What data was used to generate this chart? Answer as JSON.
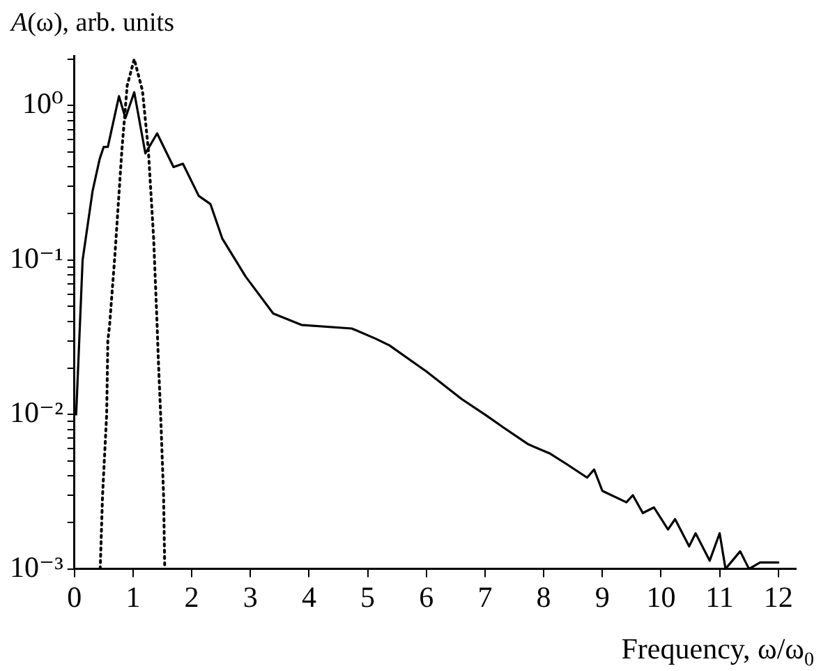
{
  "chart_data": {
    "type": "line",
    "xlabel": "Frequency, ω/ω$_{0}$",
    "ylabel": "A(ω), arb. units",
    "log": "y",
    "grid": false,
    "legend": false,
    "marker": "none",
    "xlim": [
      0,
      12.3
    ],
    "xticks": [
      0,
      1,
      2,
      3,
      4,
      5,
      6,
      7,
      8,
      9,
      10,
      11,
      12
    ],
    "ylim": [
      0.001,
      2.1
    ],
    "yticks": [
      {
        "value": 0.001,
        "label": "10⁻³"
      },
      {
        "value": 0.002,
        "label": null
      },
      {
        "value": 0.003,
        "label": null
      },
      {
        "value": 0.004,
        "label": null
      },
      {
        "value": 0.005,
        "label": null
      },
      {
        "value": 0.006,
        "label": null
      },
      {
        "value": 0.007,
        "label": null
      },
      {
        "value": 0.008,
        "label": null
      },
      {
        "value": 0.009,
        "label": null
      },
      {
        "value": 0.01,
        "label": "10⁻²"
      },
      {
        "value": 0.02,
        "label": null
      },
      {
        "value": 0.03,
        "label": null
      },
      {
        "value": 0.04,
        "label": null
      },
      {
        "value": 0.05,
        "label": null
      },
      {
        "value": 0.06,
        "label": null
      },
      {
        "value": 0.07,
        "label": null
      },
      {
        "value": 0.08,
        "label": null
      },
      {
        "value": 0.09,
        "label": null
      },
      {
        "value": 0.1,
        "label": "10⁻¹"
      },
      {
        "value": 0.2,
        "label": null
      },
      {
        "value": 0.3,
        "label": null
      },
      {
        "value": 0.4,
        "label": null
      },
      {
        "value": 0.5,
        "label": null
      },
      {
        "value": 0.6,
        "label": null
      },
      {
        "value": 0.7,
        "label": null
      },
      {
        "value": 0.8,
        "label": null
      },
      {
        "value": 0.9,
        "label": null
      },
      {
        "value": 1,
        "label": "10⁰"
      },
      {
        "value": 2,
        "label": null
      }
    ],
    "series": [
      {
        "color": "#000000",
        "line_style": "solid",
        "x": [
          0.03,
          0.14,
          0.31,
          0.43,
          0.5,
          0.57,
          0.76,
          0.87,
          1.02,
          1.21,
          1.41,
          1.69,
          1.85,
          2.12,
          2.32,
          2.52,
          2.92,
          3.39,
          3.87,
          4.73,
          5.13,
          5.37,
          6.0,
          6.6,
          7.03,
          7.32,
          7.74,
          8.1,
          8.38,
          8.74,
          8.86,
          9.0,
          9.41,
          9.52,
          9.69,
          9.88,
          10.12,
          10.24,
          10.48,
          10.59,
          10.83,
          11.0,
          11.1,
          11.35,
          11.5,
          11.69,
          12.0
        ],
        "values": [
          0.01,
          0.1,
          0.28,
          0.45,
          0.54,
          0.54,
          1.15,
          0.83,
          1.22,
          0.49,
          0.66,
          0.4,
          0.42,
          0.26,
          0.23,
          0.138,
          0.078,
          0.045,
          0.038,
          0.036,
          0.031,
          0.028,
          0.019,
          0.0126,
          0.0098,
          0.0082,
          0.0064,
          0.0056,
          0.0048,
          0.0039,
          0.0044,
          0.0032,
          0.0027,
          0.003,
          0.0023,
          0.0025,
          0.0018,
          0.0021,
          0.0014,
          0.0017,
          0.00113,
          0.0017,
          0.001,
          0.0013,
          0.001,
          0.0011,
          0.0011
        ]
      },
      {
        "color": "#000000",
        "line_style": "dotted",
        "x": [
          0.44,
          0.48,
          0.55,
          0.57,
          0.6,
          0.69,
          0.81,
          0.9,
          1.02,
          1.16,
          1.26,
          1.35,
          1.41,
          1.43,
          1.47,
          1.52,
          1.54
        ],
        "values": [
          0.001,
          0.003,
          0.01,
          0.03,
          0.038,
          0.107,
          0.52,
          1.35,
          2.0,
          1.25,
          0.52,
          0.14,
          0.038,
          0.023,
          0.01,
          0.003,
          0.001
        ]
      }
    ]
  }
}
